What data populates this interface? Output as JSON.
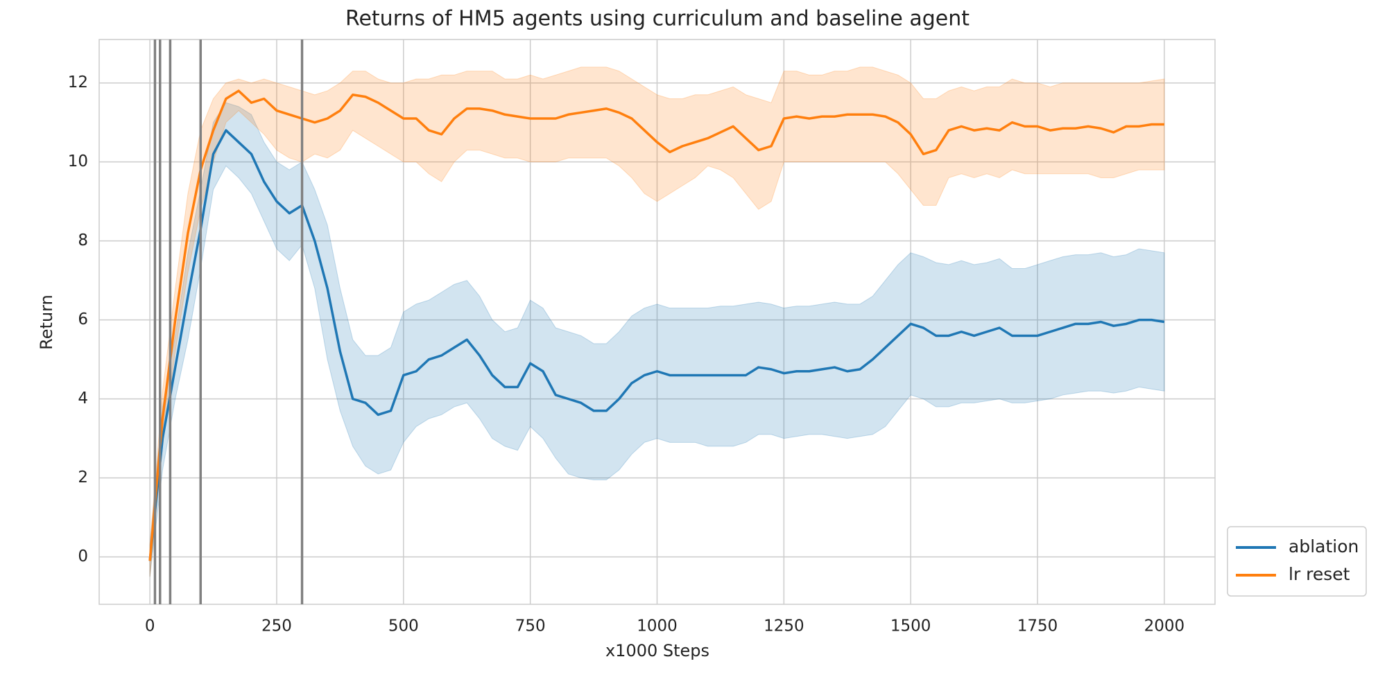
{
  "chart_data": {
    "type": "line",
    "title": "Returns of HM5 agents using curriculum and baseline agent",
    "x_label": "x1000 Steps",
    "y_label": "Return",
    "x": [
      0,
      25,
      50,
      75,
      100,
      125,
      150,
      175,
      200,
      225,
      250,
      275,
      300,
      325,
      350,
      375,
      400,
      425,
      450,
      475,
      500,
      525,
      550,
      575,
      600,
      625,
      650,
      675,
      700,
      725,
      750,
      775,
      800,
      825,
      850,
      875,
      900,
      925,
      950,
      975,
      1000,
      1025,
      1050,
      1075,
      1100,
      1125,
      1150,
      1175,
      1200,
      1225,
      1250,
      1275,
      1300,
      1325,
      1350,
      1375,
      1400,
      1425,
      1450,
      1475,
      1500,
      1525,
      1550,
      1575,
      1600,
      1625,
      1650,
      1675,
      1700,
      1725,
      1750,
      1775,
      1800,
      1825,
      1850,
      1875,
      1900,
      1925,
      1950,
      1975,
      2000
    ],
    "series": [
      {
        "name": "ablation",
        "color": "#1f77b4",
        "values": [
          -0.1,
          3.0,
          4.8,
          6.6,
          8.3,
          10.2,
          10.8,
          10.5,
          10.2,
          9.5,
          9.0,
          8.7,
          8.9,
          8.0,
          6.8,
          5.2,
          4.0,
          3.9,
          3.6,
          3.7,
          4.6,
          4.7,
          5.0,
          5.1,
          5.3,
          5.5,
          5.1,
          4.6,
          4.3,
          4.3,
          4.9,
          4.7,
          4.1,
          4.0,
          3.9,
          3.7,
          3.7,
          4.0,
          4.4,
          4.6,
          4.7,
          4.6,
          4.6,
          4.6,
          4.6,
          4.6,
          4.6,
          4.6,
          4.8,
          4.75,
          4.65,
          4.7,
          4.7,
          4.75,
          4.8,
          4.7,
          4.75,
          5.0,
          5.3,
          5.6,
          5.9,
          5.8,
          5.6,
          5.6,
          5.7,
          5.6,
          5.7,
          5.8,
          5.6,
          5.6,
          5.6,
          5.7,
          5.8,
          5.9,
          5.9,
          5.95,
          5.85,
          5.9,
          6.0,
          6.0,
          5.95
        ],
        "lower": [
          -0.5,
          2.2,
          4.0,
          5.5,
          7.3,
          9.3,
          9.9,
          9.6,
          9.2,
          8.5,
          7.8,
          7.5,
          7.9,
          6.8,
          5.0,
          3.7,
          2.8,
          2.3,
          2.1,
          2.2,
          2.9,
          3.3,
          3.5,
          3.6,
          3.8,
          3.9,
          3.5,
          3.0,
          2.8,
          2.7,
          3.3,
          3.0,
          2.5,
          2.1,
          2.0,
          1.95,
          1.95,
          2.2,
          2.6,
          2.9,
          3.0,
          2.9,
          2.9,
          2.9,
          2.8,
          2.8,
          2.8,
          2.9,
          3.1,
          3.1,
          3.0,
          3.05,
          3.1,
          3.1,
          3.05,
          3.0,
          3.05,
          3.1,
          3.3,
          3.7,
          4.1,
          4.0,
          3.8,
          3.8,
          3.9,
          3.9,
          3.95,
          4.0,
          3.9,
          3.9,
          3.95,
          4.0,
          4.1,
          4.15,
          4.2,
          4.2,
          4.15,
          4.2,
          4.3,
          4.25,
          4.2
        ],
        "upper": [
          0.3,
          3.8,
          5.6,
          7.7,
          9.3,
          11.0,
          11.5,
          11.4,
          11.2,
          10.5,
          10.0,
          9.8,
          10.0,
          9.3,
          8.4,
          6.8,
          5.5,
          5.1,
          5.1,
          5.3,
          6.2,
          6.4,
          6.5,
          6.7,
          6.9,
          7.0,
          6.6,
          6.0,
          5.7,
          5.8,
          6.5,
          6.3,
          5.8,
          5.7,
          5.6,
          5.4,
          5.4,
          5.7,
          6.1,
          6.3,
          6.4,
          6.3,
          6.3,
          6.3,
          6.3,
          6.35,
          6.35,
          6.4,
          6.45,
          6.4,
          6.3,
          6.35,
          6.35,
          6.4,
          6.45,
          6.4,
          6.4,
          6.6,
          7.0,
          7.4,
          7.7,
          7.6,
          7.45,
          7.4,
          7.5,
          7.4,
          7.45,
          7.55,
          7.3,
          7.3,
          7.4,
          7.5,
          7.6,
          7.65,
          7.65,
          7.7,
          7.6,
          7.65,
          7.8,
          7.75,
          7.7
        ]
      },
      {
        "name": "lr reset",
        "color": "#ff7f0e",
        "values": [
          -0.1,
          3.5,
          6.0,
          8.2,
          9.8,
          10.8,
          11.6,
          11.8,
          11.5,
          11.6,
          11.3,
          11.2,
          11.1,
          11.0,
          11.1,
          11.3,
          11.7,
          11.65,
          11.5,
          11.3,
          11.1,
          11.1,
          10.8,
          10.7,
          11.1,
          11.35,
          11.35,
          11.3,
          11.2,
          11.15,
          11.1,
          11.1,
          11.1,
          11.2,
          11.25,
          11.3,
          11.35,
          11.25,
          11.1,
          10.8,
          10.5,
          10.25,
          10.4,
          10.5,
          10.6,
          10.75,
          10.9,
          10.6,
          10.3,
          10.4,
          11.1,
          11.15,
          11.1,
          11.15,
          11.15,
          11.2,
          11.2,
          11.2,
          11.15,
          11.0,
          10.7,
          10.2,
          10.3,
          10.8,
          10.9,
          10.8,
          10.85,
          10.8,
          11.0,
          10.9,
          10.9,
          10.8,
          10.85,
          10.85,
          10.9,
          10.85,
          10.75,
          10.9,
          10.9,
          10.95,
          10.95
        ],
        "lower": [
          -0.5,
          2.8,
          5.2,
          7.2,
          8.8,
          10.0,
          11.0,
          11.3,
          11.0,
          10.7,
          10.3,
          10.1,
          10.0,
          10.2,
          10.1,
          10.3,
          10.8,
          10.6,
          10.4,
          10.2,
          10.0,
          10.0,
          9.7,
          9.5,
          10.0,
          10.3,
          10.3,
          10.2,
          10.1,
          10.1,
          10.0,
          10.0,
          10.0,
          10.1,
          10.1,
          10.1,
          10.1,
          9.9,
          9.6,
          9.2,
          9.0,
          9.2,
          9.4,
          9.6,
          9.9,
          9.8,
          9.6,
          9.2,
          8.8,
          9.0,
          10.0,
          10.0,
          10.0,
          10.0,
          10.0,
          10.0,
          10.0,
          10.0,
          10.0,
          9.7,
          9.3,
          8.9,
          8.9,
          9.6,
          9.7,
          9.6,
          9.7,
          9.6,
          9.8,
          9.7,
          9.7,
          9.7,
          9.7,
          9.7,
          9.7,
          9.6,
          9.6,
          9.7,
          9.8,
          9.8,
          9.8
        ],
        "upper": [
          0.3,
          4.2,
          6.8,
          9.2,
          10.8,
          11.6,
          12.0,
          12.1,
          12.0,
          12.1,
          12.0,
          11.9,
          11.8,
          11.7,
          11.8,
          12.0,
          12.3,
          12.3,
          12.1,
          12.0,
          12.0,
          12.1,
          12.1,
          12.2,
          12.2,
          12.3,
          12.3,
          12.3,
          12.1,
          12.1,
          12.2,
          12.1,
          12.2,
          12.3,
          12.4,
          12.4,
          12.4,
          12.3,
          12.1,
          11.9,
          11.7,
          11.6,
          11.6,
          11.7,
          11.7,
          11.8,
          11.9,
          11.7,
          11.6,
          11.5,
          12.3,
          12.3,
          12.2,
          12.2,
          12.3,
          12.3,
          12.4,
          12.4,
          12.3,
          12.2,
          12.0,
          11.6,
          11.6,
          11.8,
          11.9,
          11.8,
          11.9,
          11.9,
          12.1,
          12.0,
          12.0,
          11.9,
          12.0,
          12.0,
          12.0,
          12.0,
          12.0,
          12.0,
          12.0,
          12.05,
          12.1
        ]
      }
    ],
    "vlines": [
      10,
      20,
      40,
      100,
      300
    ],
    "vline_color": "#808080",
    "xlim": [
      -100,
      2100
    ],
    "ylim": [
      -1.2,
      13.1
    ],
    "xticks": [
      0,
      250,
      500,
      750,
      1000,
      1250,
      1500,
      1750,
      2000
    ],
    "yticks": [
      0,
      2,
      4,
      6,
      8,
      10,
      12
    ],
    "grid": true,
    "legend": "outside lower right"
  }
}
